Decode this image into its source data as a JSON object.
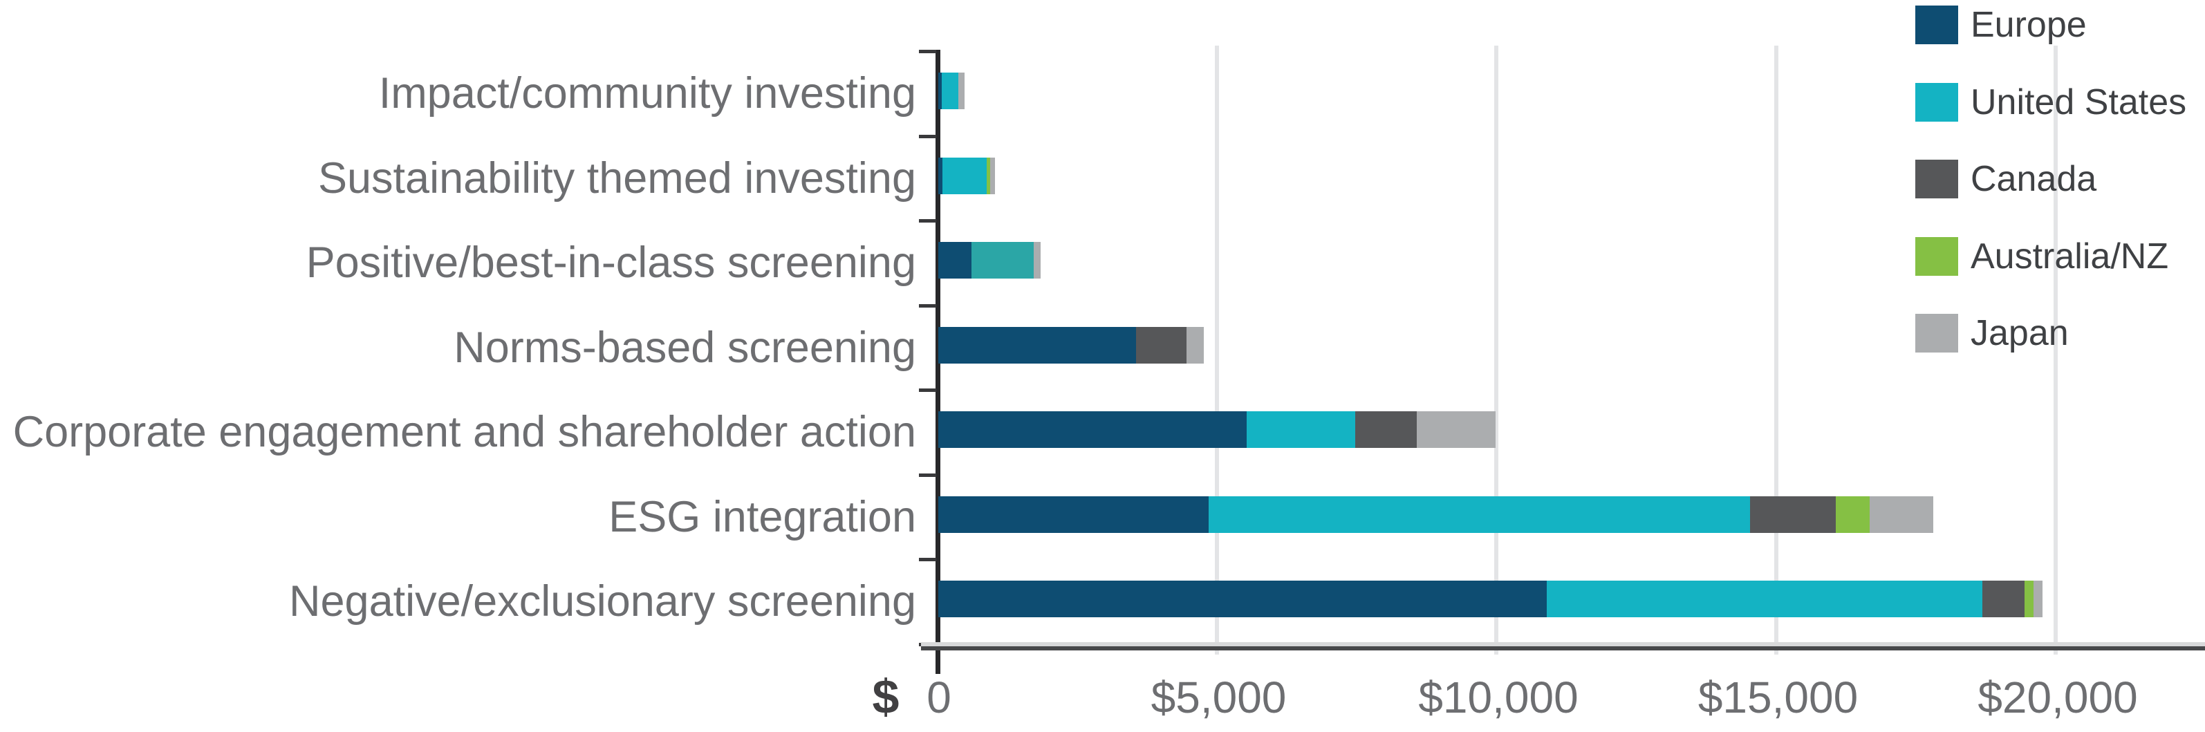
{
  "chart_data": {
    "type": "bar",
    "orientation": "horizontal",
    "stacked": true,
    "title": "",
    "categories": [
      "Impact/community investing",
      "Sustainability themed investing",
      "Positive/best-in-class screening",
      "Norms-based screening",
      "Corporate engagement and shareholder action",
      "ESG integration",
      "Negative/exclusionary screening"
    ],
    "series": [
      {
        "name": "Europe",
        "color": "#0e4d72",
        "values": [
          60,
          70,
          590,
          3535,
          5510,
          4830,
          10880
        ]
      },
      {
        "name": "United States",
        "color": "#14b3c3",
        "values": [
          295,
          795,
          1120,
          0,
          1940,
          9680,
          7780
        ]
      },
      {
        "name": "Canada",
        "color": "#565759",
        "values": [
          0,
          0,
          0,
          900,
          1110,
          1530,
          760
        ]
      },
      {
        "name": "Australia/NZ",
        "color": "#85c044",
        "values": [
          0,
          60,
          0,
          0,
          0,
          605,
          165
        ]
      },
      {
        "name": "Japan",
        "color": "#abadaf",
        "values": [
          120,
          95,
          125,
          310,
          1400,
          1140,
          160
        ]
      }
    ],
    "segment_color_overrides": [
      {
        "category_index": 2,
        "series_index": 1,
        "color": "#2ba6a6"
      }
    ],
    "x_axis": {
      "prefix": "$",
      "tick_values": [
        0,
        5000,
        10000,
        15000,
        20000
      ],
      "tick_labels": [
        "0",
        "$5,000",
        "$10,000",
        "$15,000",
        "$20,000"
      ],
      "gridline_values": [
        5000,
        10000,
        15000,
        20000
      ],
      "xlim": [
        0,
        22600
      ]
    },
    "ylabel": "",
    "xlabel": "",
    "grid": true,
    "legend_position": "top-right"
  },
  "legend": {
    "items": [
      {
        "label": "Europe",
        "color": "#0e4d72"
      },
      {
        "label": "United States",
        "color": "#14b3c3"
      },
      {
        "label": "Canada",
        "color": "#565759"
      },
      {
        "label": "Australia/NZ",
        "color": "#85c044"
      },
      {
        "label": "Japan",
        "color": "#abadaf"
      }
    ]
  },
  "styles": {
    "label_color": "#6d6e71",
    "legend_text_color": "#3f4144",
    "axis_dark": "#47484a",
    "axis_black": "#28282a",
    "gridline_color": "#e3e4e6",
    "dollar_prefix_color": "#414042"
  }
}
